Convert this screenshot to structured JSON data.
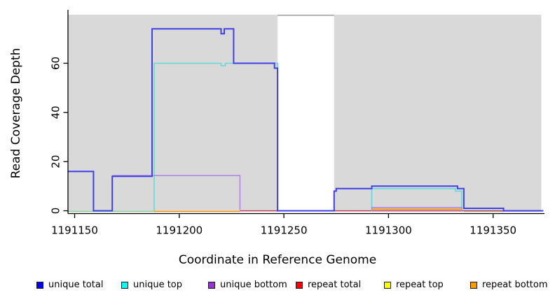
{
  "x_axis": {
    "label": "Coordinate in Reference Genome"
  },
  "y_axis": {
    "label": "Read Coverage Depth"
  },
  "legend": {
    "items": [
      {
        "label": "unique total",
        "color": "#0000ff"
      },
      {
        "label": "unique top",
        "color": "#00ffff"
      },
      {
        "label": "unique bottom",
        "color": "#9932cc"
      },
      {
        "label": "repeat total",
        "color": "#ff0000"
      },
      {
        "label": "repeat top",
        "color": "#ffff00"
      },
      {
        "label": "repeat bottom",
        "color": "#ff9900"
      }
    ]
  },
  "chart_data": {
    "type": "line",
    "title": "",
    "xlabel": "Coordinate in Reference Genome",
    "ylabel": "Read Coverage Depth",
    "xlim": [
      1191147,
      1191374
    ],
    "ylim": [
      0,
      78
    ],
    "x_ticks": [
      1191150,
      1191200,
      1191250,
      1191300,
      1191350
    ],
    "y_ticks": [
      0,
      20,
      40,
      60
    ],
    "grid": false,
    "legend_position": "bottom",
    "plot_bg_color": "#ffffff",
    "background_regions": [
      {
        "from": 1191147,
        "to": 1191247,
        "color": "#d9d9d9"
      },
      {
        "from": 1191274,
        "to": 1191373,
        "color": "#d9d9d9"
      }
    ],
    "gap_top_line": {
      "from": 1191247,
      "to": 1191274,
      "color": "#a3a3a3"
    },
    "zero_line_segments": [
      {
        "from": 1191147,
        "to": 1191188,
        "color": "#8fcf8f"
      },
      {
        "from": 1191188,
        "to": 1191229,
        "color": "#ff9100"
      },
      {
        "from": 1191336,
        "to": 1191355,
        "color": "#8fcf8f"
      }
    ],
    "series": [
      {
        "name": "repeat total",
        "line_color": "#cc3355",
        "segments": [
          [
            [
              1191229,
              0
            ],
            [
              1191373,
              0
            ]
          ]
        ]
      },
      {
        "name": "unique top",
        "line_color": "#63d9d9",
        "segments": [
          [
            [
              1191188,
              0
            ],
            [
              1191188,
              60
            ],
            [
              1191220,
              60
            ],
            [
              1191220,
              59
            ],
            [
              1191222,
              59
            ],
            [
              1191222,
              60
            ],
            [
              1191247,
              60
            ],
            [
              1191247,
              0
            ]
          ],
          [
            [
              1191292,
              0
            ],
            [
              1191292,
              9
            ],
            [
              1191332,
              9
            ],
            [
              1191332,
              8
            ],
            [
              1191335,
              8
            ],
            [
              1191335,
              0
            ]
          ]
        ]
      },
      {
        "name": "unique bottom",
        "line_color": "#b286e2",
        "segments": [
          [
            [
              1191168,
              14
            ],
            [
              1191229,
              14
            ],
            [
              1191229,
              0
            ]
          ],
          [
            [
              1191292,
              0
            ],
            [
              1191292,
              1
            ],
            [
              1191335,
              1
            ],
            [
              1191335,
              0
            ]
          ]
        ]
      },
      {
        "name": "repeat top",
        "line_color": "#ffff00",
        "segments": []
      },
      {
        "name": "repeat bottom",
        "line_color": "#ff9100",
        "segments": [
          [
            [
              1191292,
              1
            ],
            [
              1191335,
              1
            ]
          ]
        ]
      },
      {
        "name": "unique total",
        "line_color": "#4040e8",
        "segments": [
          [
            [
              1191147,
              16
            ],
            [
              1191159,
              16
            ],
            [
              1191159,
              0
            ],
            [
              1191168,
              0
            ],
            [
              1191168,
              14
            ],
            [
              1191187,
              14
            ],
            [
              1191187,
              74
            ],
            [
              1191220,
              74
            ],
            [
              1191220,
              72
            ],
            [
              1191221.5,
              72
            ],
            [
              1191221.5,
              74
            ],
            [
              1191226,
              74
            ],
            [
              1191226,
              60
            ],
            [
              1191245.5,
              60
            ],
            [
              1191245.5,
              58
            ],
            [
              1191247,
              58
            ],
            [
              1191247,
              0
            ],
            [
              1191274,
              0
            ],
            [
              1191274,
              8
            ],
            [
              1191275,
              8
            ],
            [
              1191275,
              9
            ],
            [
              1191292,
              9
            ],
            [
              1191292,
              10
            ],
            [
              1191333,
              10
            ],
            [
              1191333,
              9
            ],
            [
              1191336,
              9
            ],
            [
              1191336,
              1
            ],
            [
              1191355,
              1
            ],
            [
              1191355,
              0
            ],
            [
              1191374,
              0
            ]
          ]
        ]
      }
    ]
  }
}
